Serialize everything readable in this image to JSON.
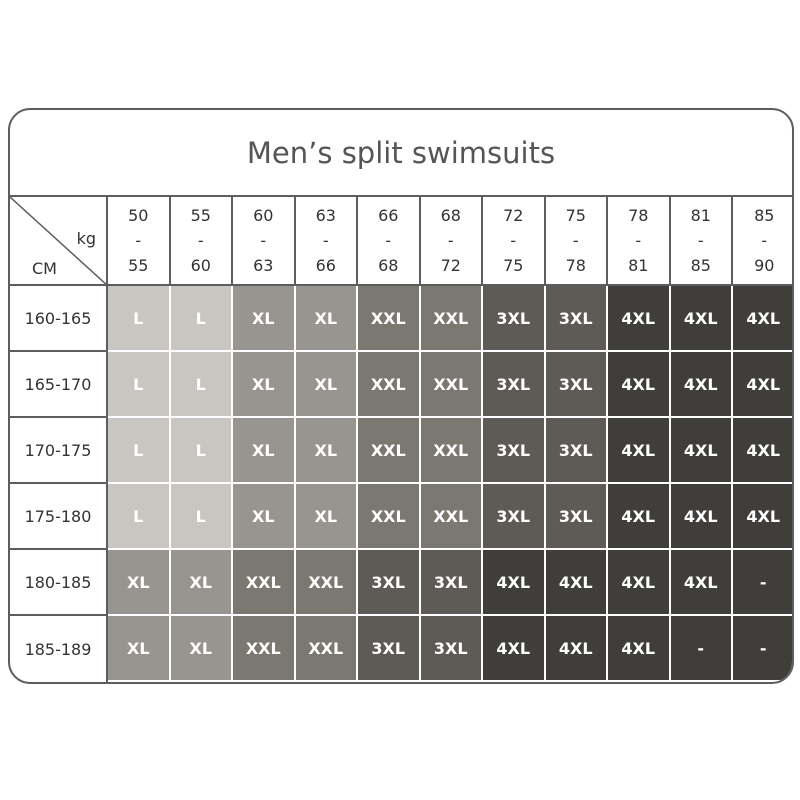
{
  "title": "Men’s split swimsuits",
  "corner": {
    "weight_unit": "kg",
    "height_unit": "CM"
  },
  "weights": [
    {
      "from": "50",
      "dash": "-",
      "to": "55"
    },
    {
      "from": "55",
      "dash": "-",
      "to": "60"
    },
    {
      "from": "60",
      "dash": "-",
      "to": "63"
    },
    {
      "from": "63",
      "dash": "-",
      "to": "66"
    },
    {
      "from": "66",
      "dash": "-",
      "to": "68"
    },
    {
      "from": "68",
      "dash": "-",
      "to": "72"
    },
    {
      "from": "72",
      "dash": "-",
      "to": "75"
    },
    {
      "from": "75",
      "dash": "-",
      "to": "78"
    },
    {
      "from": "78",
      "dash": "-",
      "to": "81"
    },
    {
      "from": "81",
      "dash": "-",
      "to": "85"
    },
    {
      "from": "85",
      "dash": "-",
      "to": "90"
    }
  ],
  "heights": [
    "160-165",
    "165-170",
    "170-175",
    "175-180",
    "180-185",
    "185-189"
  ],
  "sizes": [
    [
      "L",
      "L",
      "XL",
      "XL",
      "XXL",
      "XXL",
      "3XL",
      "3XL",
      "4XL",
      "4XL",
      "4XL"
    ],
    [
      "L",
      "L",
      "XL",
      "XL",
      "XXL",
      "XXL",
      "3XL",
      "3XL",
      "4XL",
      "4XL",
      "4XL"
    ],
    [
      "L",
      "L",
      "XL",
      "XL",
      "XXL",
      "XXL",
      "3XL",
      "3XL",
      "4XL",
      "4XL",
      "4XL"
    ],
    [
      "L",
      "L",
      "XL",
      "XL",
      "XXL",
      "XXL",
      "3XL",
      "3XL",
      "4XL",
      "4XL",
      "4XL"
    ],
    [
      "XL",
      "XL",
      "XXL",
      "XXL",
      "3XL",
      "3XL",
      "4XL",
      "4XL",
      "4XL",
      "4XL",
      "-"
    ],
    [
      "XL",
      "XL",
      "XXL",
      "XXL",
      "3XL",
      "3XL",
      "4XL",
      "4XL",
      "4XL",
      "-",
      "-"
    ]
  ],
  "size_colors": {
    "L": "#c9c6c1",
    "XL": "#98948f",
    "XXL": "#7b7771",
    "3XL": "#5e5b57",
    "4XL": "#403e3b",
    "-": "#403e3b"
  },
  "border_color": "#5d5d5d"
}
